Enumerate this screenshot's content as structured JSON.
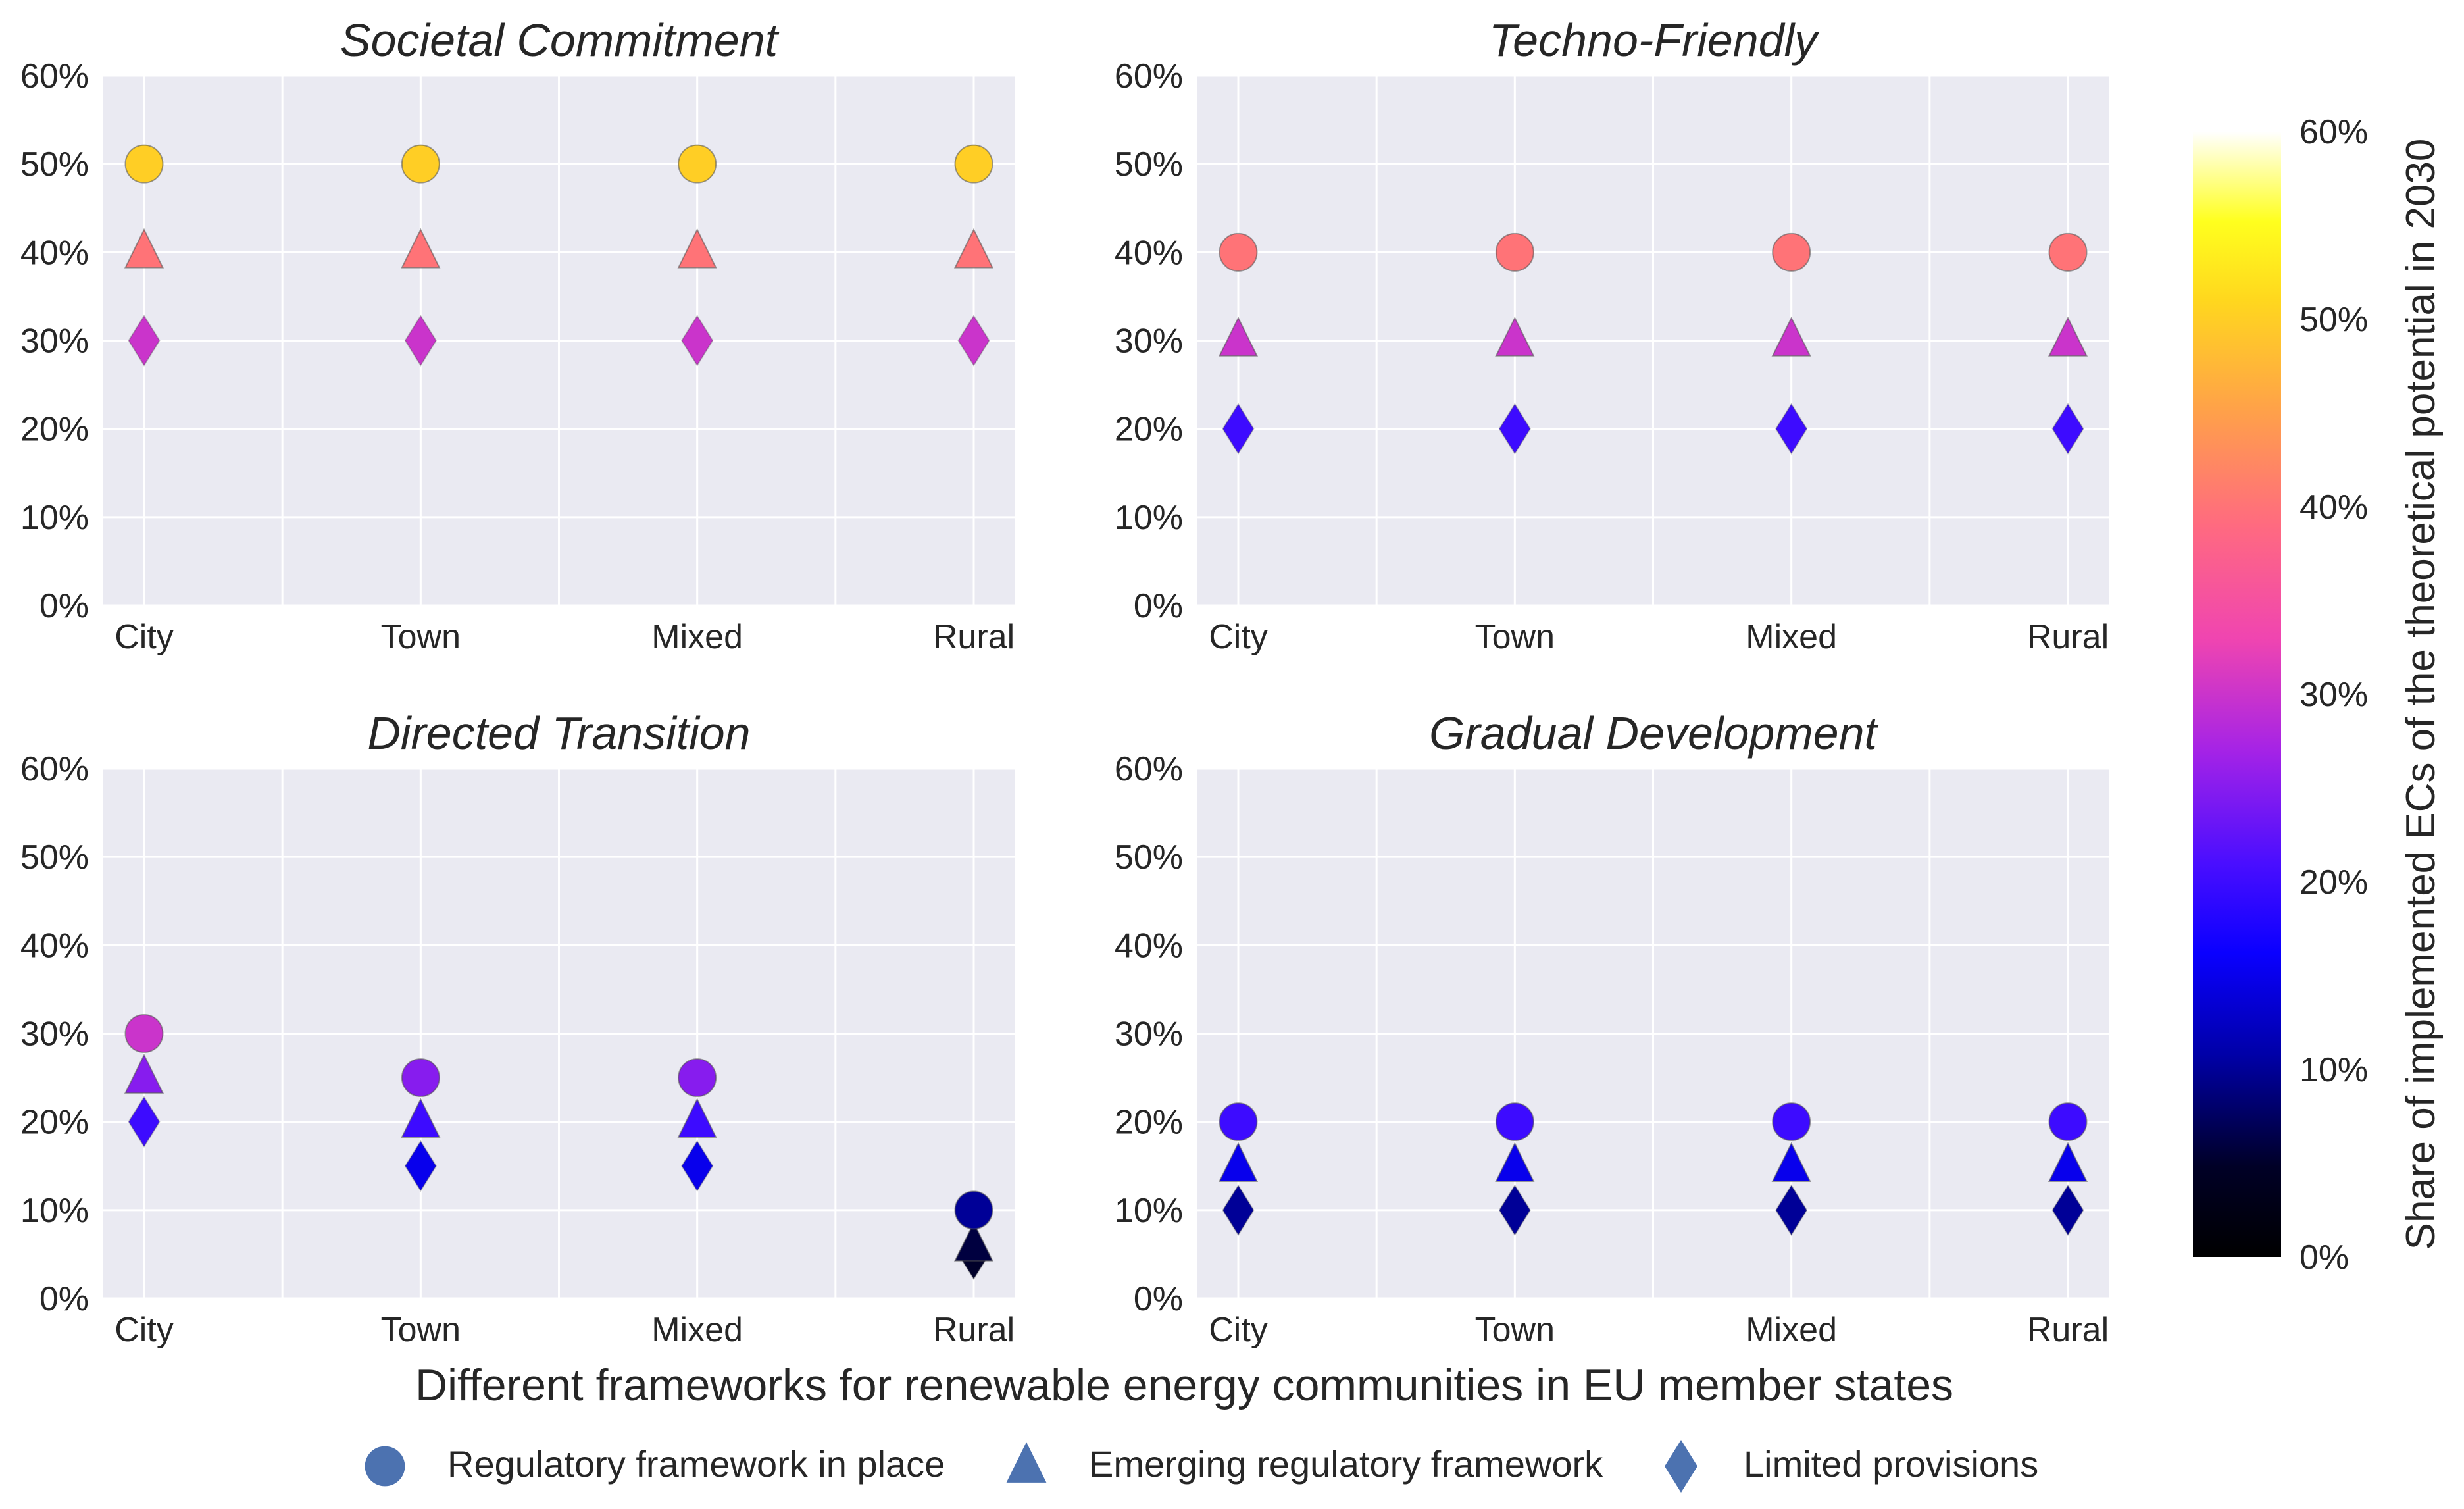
{
  "figure": {
    "xlabel": "Different frameworks for renewable energy communities in EU member states",
    "colorbar": {
      "label": "Share of implemented ECs of the theoretical potential in 2030",
      "ticks": [
        "0%",
        "10%",
        "20%",
        "30%",
        "40%",
        "50%",
        "60%"
      ],
      "range": [
        0,
        60
      ],
      "colormap": "gnuplot2"
    },
    "legend": {
      "placement": "bottom-center",
      "marker_color": "#4c72b0",
      "items": [
        {
          "marker": "circle",
          "label": "Regulatory framework in place"
        },
        {
          "marker": "triangle",
          "label": "Emerging regulatory framework"
        },
        {
          "marker": "diamond",
          "label": "Limited provisions"
        }
      ]
    }
  },
  "chart_data": [
    {
      "type": "scatter",
      "title": "Societal Commitment",
      "categories": [
        "City",
        "Town",
        "Mixed",
        "Rural"
      ],
      "y_ticks": [
        "0%",
        "10%",
        "20%",
        "30%",
        "40%",
        "50%",
        "60%"
      ],
      "ylim": [
        0,
        60
      ],
      "grid": true,
      "series": [
        {
          "name": "Regulatory framework in place",
          "marker": "circle",
          "values": [
            50,
            50,
            50,
            50
          ]
        },
        {
          "name": "Emerging regulatory framework",
          "marker": "triangle",
          "values": [
            40,
            40,
            40,
            40
          ]
        },
        {
          "name": "Limited provisions",
          "marker": "diamond",
          "values": [
            30,
            30,
            30,
            30
          ]
        }
      ]
    },
    {
      "type": "scatter",
      "title": "Techno-Friendly",
      "categories": [
        "City",
        "Town",
        "Mixed",
        "Rural"
      ],
      "y_ticks": [
        "0%",
        "10%",
        "20%",
        "30%",
        "40%",
        "50%",
        "60%"
      ],
      "ylim": [
        0,
        60
      ],
      "grid": true,
      "series": [
        {
          "name": "Regulatory framework in place",
          "marker": "circle",
          "values": [
            40,
            40,
            40,
            40
          ]
        },
        {
          "name": "Emerging regulatory framework",
          "marker": "triangle",
          "values": [
            30,
            30,
            30,
            30
          ]
        },
        {
          "name": "Limited provisions",
          "marker": "diamond",
          "values": [
            20,
            20,
            20,
            20
          ]
        }
      ]
    },
    {
      "type": "scatter",
      "title": "Directed Transition",
      "categories": [
        "City",
        "Town",
        "Mixed",
        "Rural"
      ],
      "y_ticks": [
        "0%",
        "10%",
        "20%",
        "30%",
        "40%",
        "50%",
        "60%"
      ],
      "ylim": [
        0,
        60
      ],
      "grid": true,
      "series": [
        {
          "name": "Regulatory framework in place",
          "marker": "circle",
          "values": [
            30,
            25,
            25,
            10
          ]
        },
        {
          "name": "Emerging regulatory framework",
          "marker": "triangle",
          "values": [
            25,
            20,
            20,
            6
          ]
        },
        {
          "name": "Limited provisions",
          "marker": "diamond",
          "values": [
            20,
            15,
            15,
            5
          ]
        }
      ]
    },
    {
      "type": "scatter",
      "title": "Gradual Development",
      "categories": [
        "City",
        "Town",
        "Mixed",
        "Rural"
      ],
      "y_ticks": [
        "0%",
        "10%",
        "20%",
        "30%",
        "40%",
        "50%",
        "60%"
      ],
      "ylim": [
        0,
        60
      ],
      "grid": true,
      "series": [
        {
          "name": "Regulatory framework in place",
          "marker": "circle",
          "values": [
            20,
            20,
            20,
            20
          ]
        },
        {
          "name": "Emerging regulatory framework",
          "marker": "triangle",
          "values": [
            15,
            15,
            15,
            15
          ]
        },
        {
          "name": "Limited provisions",
          "marker": "diamond",
          "values": [
            10,
            10,
            10,
            10
          ]
        }
      ]
    }
  ]
}
